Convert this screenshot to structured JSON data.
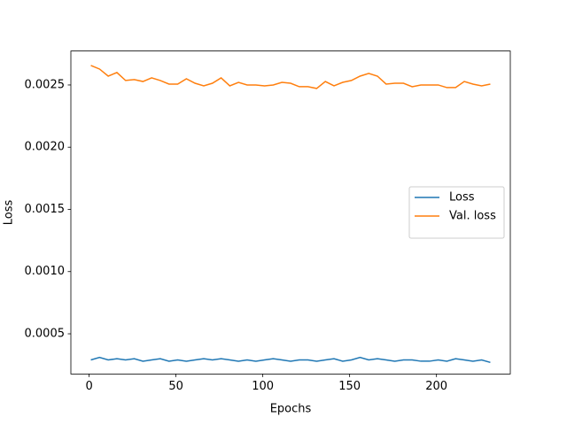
{
  "chart_data": {
    "type": "line",
    "x_label": "Epochs",
    "y_label": "Loss",
    "x": [
      1,
      6,
      11,
      16,
      21,
      26,
      31,
      36,
      41,
      46,
      51,
      56,
      61,
      66,
      71,
      76,
      81,
      86,
      91,
      96,
      101,
      106,
      111,
      116,
      121,
      126,
      131,
      136,
      141,
      146,
      151,
      156,
      161,
      166,
      171,
      176,
      181,
      186,
      191,
      196,
      201,
      206,
      211,
      216,
      221,
      226,
      231
    ],
    "series": [
      {
        "name": "Loss",
        "color": "#1f77b4",
        "values": [
          0.00029,
          0.00031,
          0.00029,
          0.0003,
          0.00029,
          0.0003,
          0.00028,
          0.00029,
          0.0003,
          0.00028,
          0.00029,
          0.00028,
          0.00029,
          0.0003,
          0.00029,
          0.0003,
          0.00029,
          0.00028,
          0.00029,
          0.00028,
          0.00029,
          0.0003,
          0.00029,
          0.00028,
          0.00029,
          0.00029,
          0.00028,
          0.00029,
          0.0003,
          0.00028,
          0.00029,
          0.00031,
          0.00029,
          0.0003,
          0.00029,
          0.00028,
          0.00029,
          0.00029,
          0.00028,
          0.00028,
          0.00029,
          0.00028,
          0.0003,
          0.00029,
          0.00028,
          0.00029,
          0.00027
        ]
      },
      {
        "name": "Val. loss",
        "color": "#ff7f0e",
        "values": [
          0.002657,
          0.002628,
          0.002571,
          0.0026,
          0.002536,
          0.002543,
          0.002528,
          0.002557,
          0.002536,
          0.002507,
          0.002507,
          0.00255,
          0.002514,
          0.002493,
          0.002514,
          0.002557,
          0.002493,
          0.002521,
          0.0025,
          0.0025,
          0.002493,
          0.0025,
          0.002521,
          0.002514,
          0.002486,
          0.002486,
          0.002472,
          0.002528,
          0.002493,
          0.002521,
          0.002536,
          0.002571,
          0.002593,
          0.002571,
          0.002507,
          0.002514,
          0.002514,
          0.002486,
          0.0025,
          0.0025,
          0.0025,
          0.002479,
          0.002479,
          0.002528,
          0.002507,
          0.002493,
          0.002507
        ]
      }
    ],
    "xlim": [
      -10.5,
      242.5
    ],
    "ylim": [
      0.000177,
      0.002773
    ],
    "xticks": [
      0,
      50,
      100,
      150,
      200
    ],
    "yticks": [
      0.0005,
      {
        "value": 0.001,
        "label": "0.0010"
      },
      0.0015,
      {
        "value": 0.002,
        "label": "0.0020"
      },
      0.0025
    ],
    "legend": "center right",
    "grid": false
  }
}
